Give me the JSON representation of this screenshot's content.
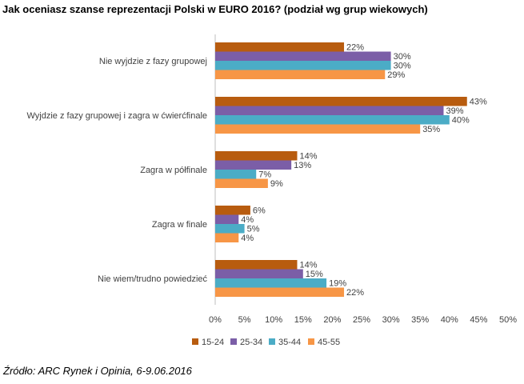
{
  "title": "Jak oceniasz szanse reprezentacji Polski w EURO 2016? (podział wg grup wiekowych)",
  "source": "Źródło: ARC Rynek i Opinia, 6-9.06.2016",
  "chart_data": {
    "type": "bar",
    "orientation": "horizontal",
    "title": "Jak oceniasz szanse reprezentacji Polski w EURO 2016? (podział wg grup wiekowych)",
    "categories": [
      "Nie wyjdzie z fazy grupowej",
      "Wyjdzie z fazy grupowej i zagra w ćwierćfinale",
      "Zagra w półfinale",
      "Zagra w finale",
      "Nie wiem/trudno powiedzieć"
    ],
    "series": [
      {
        "name": "15-24",
        "color": "#b85c0f",
        "values": [
          22,
          43,
          14,
          6,
          14
        ]
      },
      {
        "name": "25-34",
        "color": "#7b5ea7",
        "values": [
          30,
          39,
          13,
          4,
          15
        ]
      },
      {
        "name": "35-44",
        "color": "#4bacc6",
        "values": [
          30,
          40,
          7,
          5,
          19
        ]
      },
      {
        "name": "45-55",
        "color": "#f79646",
        "values": [
          29,
          35,
          9,
          4,
          22
        ]
      }
    ],
    "xlim": [
      0,
      50
    ],
    "xticks": [
      0,
      5,
      10,
      15,
      20,
      25,
      30,
      35,
      40,
      45,
      50
    ],
    "tick_suffix": "%",
    "value_suffix": "%",
    "legend_position": "bottom",
    "grid": false,
    "xlabel": "",
    "ylabel": ""
  }
}
